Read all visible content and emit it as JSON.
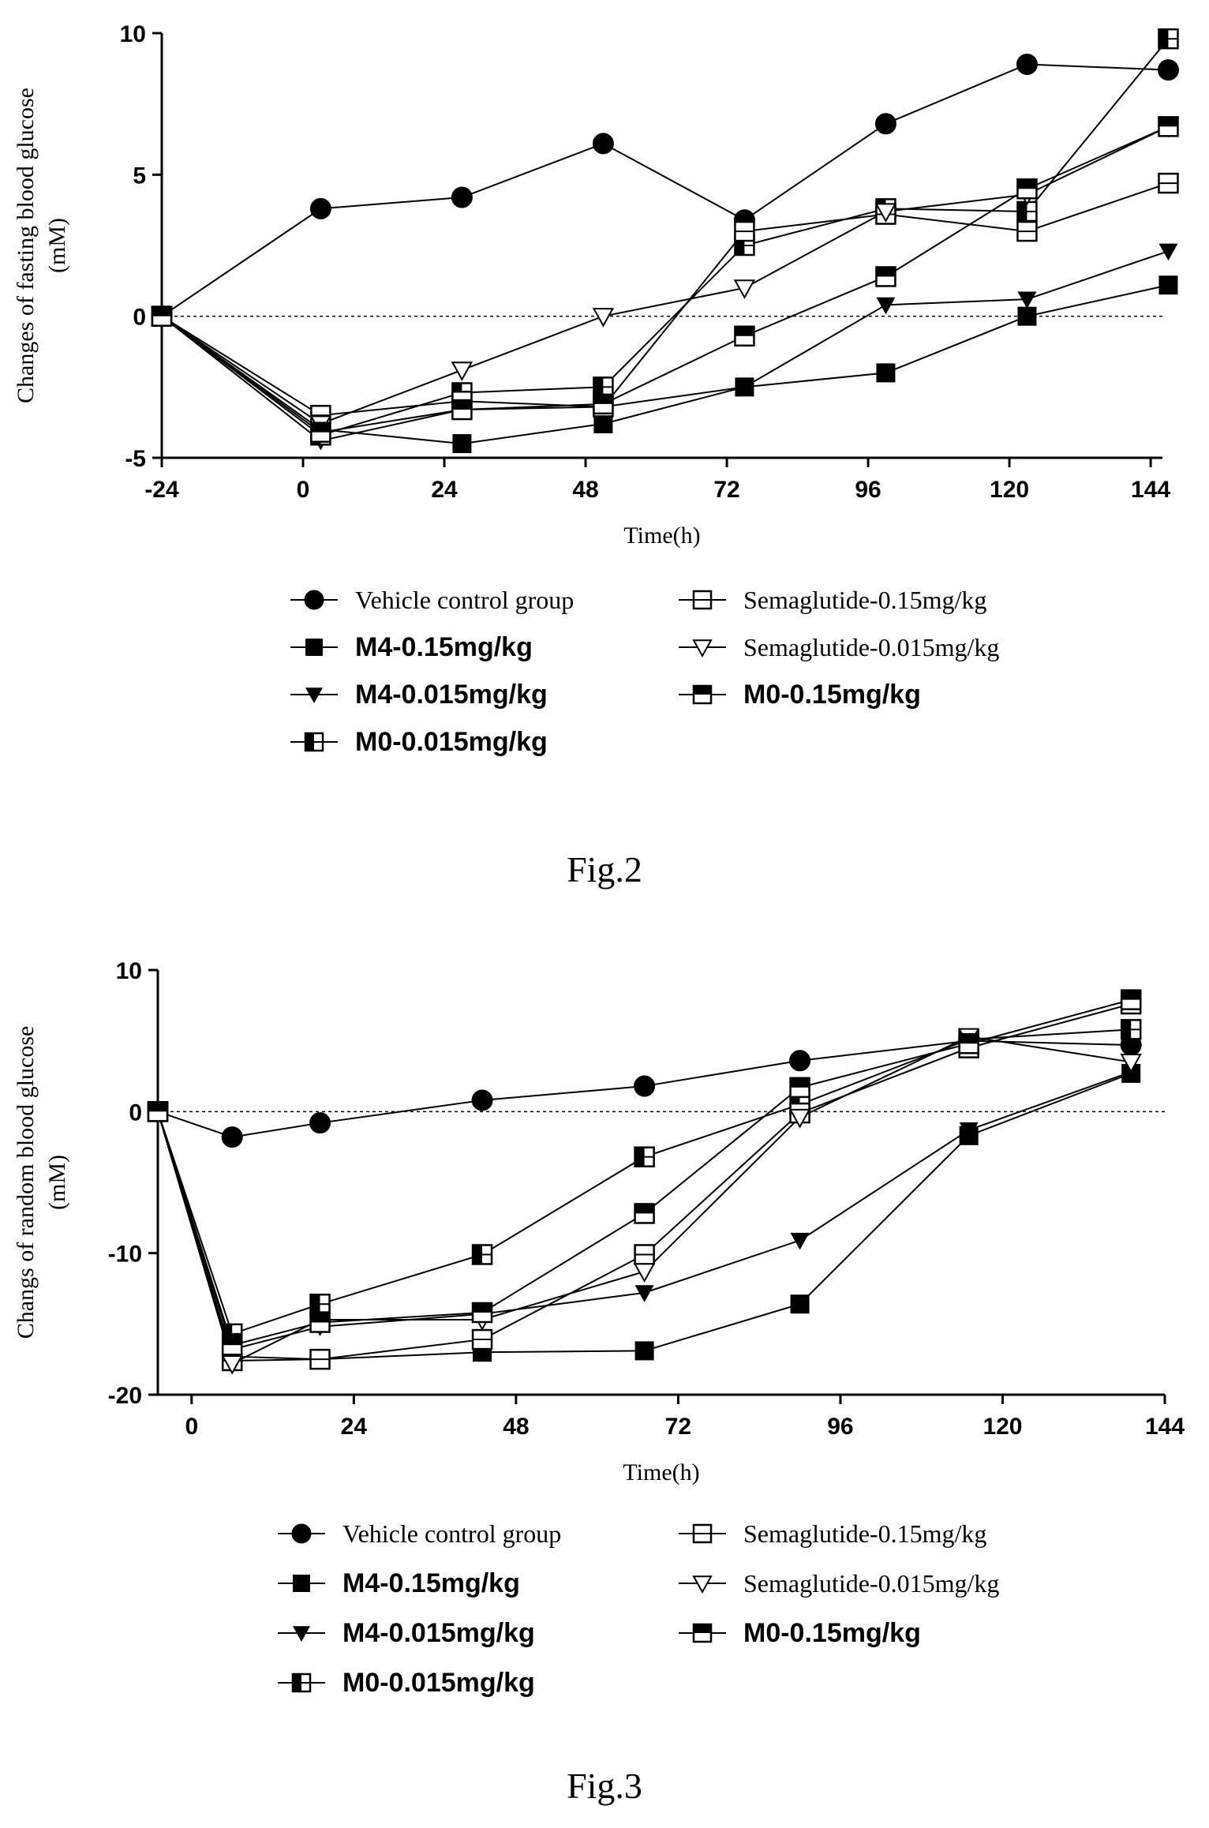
{
  "chart_data": [
    {
      "type": "line",
      "figure_label": "Fig.2",
      "xlabel": "Time(h)",
      "ylabel_line1": "Changes of fasting blood glucose",
      "ylabel_line2": "(mM)",
      "xlim": [
        -24,
        146
      ],
      "ylim": [
        -5,
        10
      ],
      "xticks": [
        -24,
        0,
        24,
        48,
        72,
        96,
        120,
        144
      ],
      "yticks": [
        -5,
        0,
        5,
        10
      ],
      "reference_line": 0,
      "legend": "bottom, two columns",
      "series": [
        {
          "name": "Vehicle control group",
          "marker": "circle",
          "x": [
            -24,
            3,
            27,
            51,
            75,
            99,
            123,
            147
          ],
          "y": [
            0,
            3.8,
            4.2,
            6.1,
            3.4,
            6.8,
            8.9,
            8.7
          ]
        },
        {
          "name": "M4-0.15mg/kg",
          "marker": "square-filled",
          "x": [
            -24,
            3,
            27,
            51,
            75,
            99,
            123,
            147
          ],
          "y": [
            0,
            -4.0,
            -4.5,
            -3.8,
            -2.5,
            -2.0,
            0.0,
            1.1
          ]
        },
        {
          "name": "M4-0.015mg/kg",
          "marker": "triangle-down-filled",
          "x": [
            -24,
            3,
            27,
            51,
            75,
            99,
            123,
            147
          ],
          "y": [
            0,
            -4.4,
            -3.3,
            -3.2,
            -2.5,
            0.4,
            0.6,
            2.3
          ]
        },
        {
          "name": "M0-0.015mg/kg",
          "marker": "square-half-left",
          "x": [
            -24,
            3,
            27,
            51,
            75,
            99,
            123,
            147
          ],
          "y": [
            0,
            -4.2,
            -2.7,
            -2.5,
            2.5,
            3.8,
            3.7,
            9.8
          ]
        },
        {
          "name": "Semaglutide-0.15mg/kg",
          "marker": "square-open-line",
          "x": [
            -24,
            3,
            27,
            51,
            75,
            99,
            123,
            147
          ],
          "y": [
            0,
            -3.5,
            -3.0,
            -3.2,
            3.0,
            3.6,
            3.0,
            4.7
          ]
        },
        {
          "name": "Semaglutide-0.015mg/kg",
          "marker": "triangle-down-open",
          "x": [
            -24,
            3,
            27,
            51,
            75,
            99,
            123,
            147
          ],
          "y": [
            0,
            -3.8,
            -1.9,
            0.0,
            1.0,
            3.7,
            4.3,
            6.7
          ]
        },
        {
          "name": "M0-0.15mg/kg",
          "marker": "square-half-top",
          "x": [
            -24,
            3,
            27,
            51,
            75,
            99,
            123,
            147
          ],
          "y": [
            0,
            -4.1,
            -3.3,
            -3.1,
            -0.7,
            1.4,
            4.5,
            6.7
          ]
        }
      ]
    },
    {
      "type": "line",
      "figure_label": "Fig.3",
      "xlabel": "Time(h)",
      "ylabel_line1": "Changs of random blood glucose",
      "ylabel_line2": "(mM)",
      "xlim": [
        -5,
        144
      ],
      "ylim": [
        -20,
        10
      ],
      "xticks": [
        0,
        24,
        48,
        72,
        96,
        120,
        144
      ],
      "yticks": [
        -20,
        -10,
        0,
        10
      ],
      "reference_line": 0,
      "legend": "bottom, two columns",
      "series": [
        {
          "name": "Vehicle control group",
          "marker": "circle",
          "x": [
            -5,
            6,
            19,
            43,
            67,
            90,
            115,
            139
          ],
          "y": [
            0,
            -1.8,
            -0.8,
            0.8,
            1.8,
            3.6,
            5.0,
            4.7
          ]
        },
        {
          "name": "M4-0.15mg/kg",
          "marker": "square-filled",
          "x": [
            -5,
            6,
            19,
            43,
            67,
            90,
            115,
            139
          ],
          "y": [
            0,
            -17.3,
            -17.5,
            -17.0,
            -16.9,
            -13.6,
            -1.7,
            2.7
          ]
        },
        {
          "name": "M4-0.015mg/kg",
          "marker": "triangle-down-filled",
          "x": [
            -5,
            6,
            19,
            43,
            67,
            90,
            115,
            139
          ],
          "y": [
            0,
            -16.8,
            -15.2,
            -14.3,
            -12.8,
            -9.1,
            -1.3,
            2.8
          ]
        },
        {
          "name": "M0-0.015mg/kg",
          "marker": "square-half-left",
          "x": [
            -5,
            6,
            19,
            43,
            67,
            90,
            115,
            139
          ],
          "y": [
            0,
            -15.7,
            -13.6,
            -10.1,
            -3.2,
            0.5,
            5.1,
            5.8
          ]
        },
        {
          "name": "Semaglutide-0.15mg/kg",
          "marker": "square-open-line",
          "x": [
            -5,
            6,
            19,
            43,
            67,
            90,
            115,
            139
          ],
          "y": [
            0,
            -17.6,
            -17.5,
            -16.1,
            -10.1,
            -0.1,
            4.5,
            7.6
          ]
        },
        {
          "name": "Semaglutide-0.015mg/kg",
          "marker": "triangle-down-open",
          "x": [
            -5,
            6,
            19,
            43,
            67,
            90,
            115,
            139
          ],
          "y": [
            0,
            -17.8,
            -14.7,
            -14.7,
            -11.3,
            -0.4,
            5.3,
            3.5
          ]
        },
        {
          "name": "M0-0.15mg/kg",
          "marker": "square-half-top",
          "x": [
            -5,
            6,
            19,
            43,
            67,
            90,
            115,
            139
          ],
          "y": [
            0,
            -16.5,
            -14.9,
            -14.2,
            -7.2,
            1.7,
            4.8,
            7.9
          ]
        }
      ]
    }
  ],
  "captions": {
    "fig2": "Fig.2",
    "fig3": "Fig.3"
  }
}
